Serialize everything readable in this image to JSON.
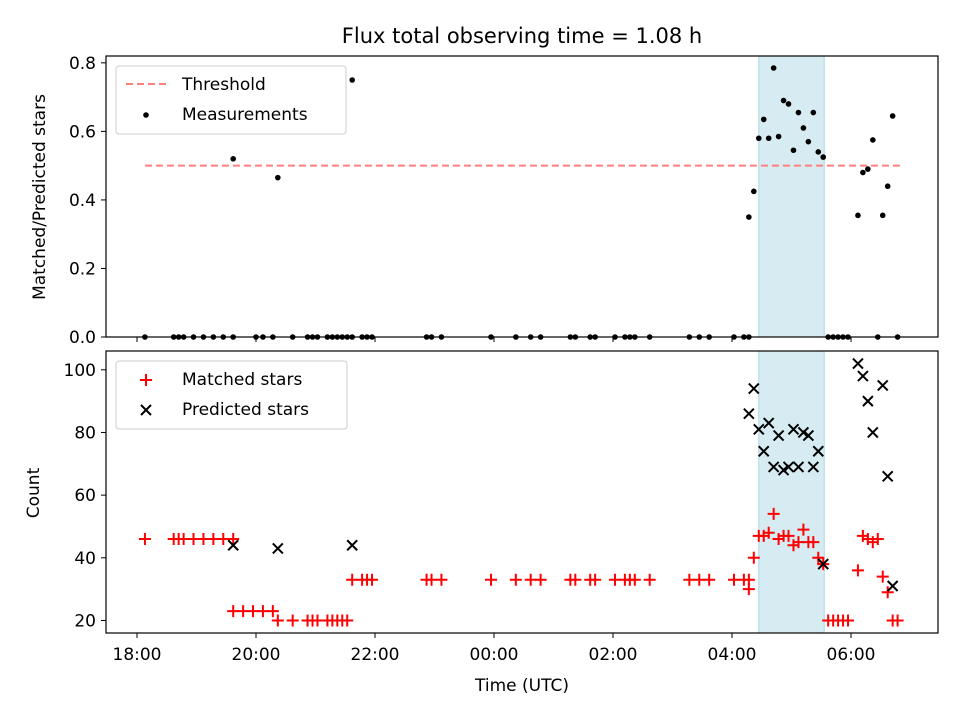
{
  "chart_data": {
    "title": "Flux total observing time = 1.08 h",
    "xlabel": "Time (UTC)",
    "x_tick_labels": [
      "18:00",
      "20:00",
      "22:00",
      "00:00",
      "02:00",
      "04:00",
      "06:00"
    ],
    "highlight_span": [
      "04:27",
      "05:33"
    ],
    "panels": [
      {
        "type": "scatter",
        "ylabel": "Matched/Predicted stars",
        "ylim": [
          0,
          0.82
        ],
        "y_ticks": [
          "0.0",
          "0.2",
          "0.4",
          "0.6",
          "0.8"
        ],
        "legend_position": "upper-left",
        "threshold": {
          "name": "Threshold",
          "value": 0.5,
          "x_range": [
            "18:08",
            "06:50"
          ],
          "color": "#ff7f7f"
        },
        "series": [
          {
            "name": "Measurements",
            "marker": "dot",
            "color": "#000000",
            "points": [
              [
                "18:08",
                0
              ],
              [
                "18:37",
                0
              ],
              [
                "18:42",
                0
              ],
              [
                "18:47",
                0
              ],
              [
                "18:57",
                0
              ],
              [
                "19:07",
                0
              ],
              [
                "19:17",
                0
              ],
              [
                "19:27",
                0
              ],
              [
                "19:37",
                0
              ],
              [
                "19:37",
                0.52
              ],
              [
                "20:00",
                0
              ],
              [
                "20:07",
                0
              ],
              [
                "20:17",
                0
              ],
              [
                "20:22",
                0.465
              ],
              [
                "20:37",
                0
              ],
              [
                "20:52",
                0
              ],
              [
                "20:57",
                0
              ],
              [
                "21:02",
                0
              ],
              [
                "21:12",
                0
              ],
              [
                "21:17",
                0
              ],
              [
                "21:22",
                0
              ],
              [
                "21:27",
                0
              ],
              [
                "21:32",
                0
              ],
              [
                "21:37",
                0
              ],
              [
                "21:37",
                0.75
              ],
              [
                "21:47",
                0
              ],
              [
                "21:52",
                0
              ],
              [
                "21:57",
                0
              ],
              [
                "22:52",
                0
              ],
              [
                "22:57",
                0
              ],
              [
                "23:07",
                0
              ],
              [
                "23:57",
                0
              ],
              [
                "00:22",
                0
              ],
              [
                "00:37",
                0
              ],
              [
                "00:47",
                0
              ],
              [
                "01:17",
                0
              ],
              [
                "01:22",
                0
              ],
              [
                "01:37",
                0
              ],
              [
                "01:42",
                0
              ],
              [
                "02:02",
                0
              ],
              [
                "02:12",
                0
              ],
              [
                "02:17",
                0
              ],
              [
                "02:22",
                0
              ],
              [
                "02:37",
                0
              ],
              [
                "03:17",
                0
              ],
              [
                "03:27",
                0
              ],
              [
                "03:37",
                0
              ],
              [
                "04:02",
                0
              ],
              [
                "04:12",
                0
              ],
              [
                "04:17",
                0
              ],
              [
                "04:17",
                0.35
              ],
              [
                "04:22",
                0.425
              ],
              [
                "04:27",
                0.58
              ],
              [
                "04:32",
                0.635
              ],
              [
                "04:37",
                0.58
              ],
              [
                "04:42",
                0.785
              ],
              [
                "04:47",
                0.585
              ],
              [
                "04:52",
                0.69
              ],
              [
                "04:57",
                0.68
              ],
              [
                "05:02",
                0.545
              ],
              [
                "05:07",
                0.655
              ],
              [
                "05:12",
                0.61
              ],
              [
                "05:17",
                0.57
              ],
              [
                "05:22",
                0.655
              ],
              [
                "05:27",
                0.54
              ],
              [
                "05:32",
                0.525
              ],
              [
                "05:37",
                0
              ],
              [
                "05:42",
                0
              ],
              [
                "05:47",
                0
              ],
              [
                "05:52",
                0
              ],
              [
                "05:57",
                0
              ],
              [
                "06:07",
                0.355
              ],
              [
                "06:12",
                0.48
              ],
              [
                "06:17",
                0.49
              ],
              [
                "06:22",
                0.575
              ],
              [
                "06:27",
                0
              ],
              [
                "06:32",
                0.355
              ],
              [
                "06:37",
                0.44
              ],
              [
                "06:42",
                0.645
              ],
              [
                "06:47",
                0
              ]
            ]
          }
        ]
      },
      {
        "type": "scatter",
        "ylabel": "Count",
        "ylim": [
          16,
          106
        ],
        "y_ticks": [
          "20",
          "40",
          "60",
          "80",
          "100"
        ],
        "legend_position": "upper-left",
        "series": [
          {
            "name": "Matched stars",
            "marker": "plus",
            "color": "#ff0000",
            "points": [
              [
                "18:08",
                46
              ],
              [
                "18:37",
                46
              ],
              [
                "18:42",
                46
              ],
              [
                "18:47",
                46
              ],
              [
                "18:57",
                46
              ],
              [
                "19:07",
                46
              ],
              [
                "19:17",
                46
              ],
              [
                "19:27",
                46
              ],
              [
                "19:37",
                46
              ],
              [
                "19:37",
                23
              ],
              [
                "19:47",
                23
              ],
              [
                "19:57",
                23
              ],
              [
                "20:07",
                23
              ],
              [
                "20:17",
                23
              ],
              [
                "20:22",
                20
              ],
              [
                "20:37",
                20
              ],
              [
                "20:52",
                20
              ],
              [
                "20:57",
                20
              ],
              [
                "21:02",
                20
              ],
              [
                "21:12",
                20
              ],
              [
                "21:17",
                20
              ],
              [
                "21:22",
                20
              ],
              [
                "21:27",
                20
              ],
              [
                "21:32",
                20
              ],
              [
                "21:37",
                33
              ],
              [
                "21:47",
                33
              ],
              [
                "21:52",
                33
              ],
              [
                "21:57",
                33
              ],
              [
                "22:52",
                33
              ],
              [
                "22:57",
                33
              ],
              [
                "23:07",
                33
              ],
              [
                "23:57",
                33
              ],
              [
                "00:22",
                33
              ],
              [
                "00:37",
                33
              ],
              [
                "00:47",
                33
              ],
              [
                "01:17",
                33
              ],
              [
                "01:22",
                33
              ],
              [
                "01:37",
                33
              ],
              [
                "01:42",
                33
              ],
              [
                "02:02",
                33
              ],
              [
                "02:12",
                33
              ],
              [
                "02:17",
                33
              ],
              [
                "02:22",
                33
              ],
              [
                "02:37",
                33
              ],
              [
                "03:17",
                33
              ],
              [
                "03:27",
                33
              ],
              [
                "03:37",
                33
              ],
              [
                "04:02",
                33
              ],
              [
                "04:12",
                33
              ],
              [
                "04:17",
                33
              ],
              [
                "04:17",
                30
              ],
              [
                "04:22",
                40
              ],
              [
                "04:27",
                47
              ],
              [
                "04:32",
                47
              ],
              [
                "04:37",
                48
              ],
              [
                "04:42",
                54
              ],
              [
                "04:47",
                46
              ],
              [
                "04:52",
                47
              ],
              [
                "04:57",
                47
              ],
              [
                "05:02",
                44
              ],
              [
                "05:07",
                45
              ],
              [
                "05:12",
                49
              ],
              [
                "05:17",
                45
              ],
              [
                "05:22",
                45
              ],
              [
                "05:27",
                40
              ],
              [
                "05:32",
                38
              ],
              [
                "05:37",
                20
              ],
              [
                "05:42",
                20
              ],
              [
                "05:47",
                20
              ],
              [
                "05:52",
                20
              ],
              [
                "05:57",
                20
              ],
              [
                "06:07",
                36
              ],
              [
                "06:12",
                47
              ],
              [
                "06:17",
                46
              ],
              [
                "06:22",
                45
              ],
              [
                "06:27",
                46
              ],
              [
                "06:32",
                34
              ],
              [
                "06:37",
                29
              ],
              [
                "06:42",
                20
              ],
              [
                "06:47",
                20
              ]
            ]
          },
          {
            "name": "Predicted stars",
            "marker": "x",
            "color": "#000000",
            "points": [
              [
                "19:37",
                44
              ],
              [
                "20:22",
                43
              ],
              [
                "21:37",
                44
              ],
              [
                "04:17",
                86
              ],
              [
                "04:22",
                94
              ],
              [
                "04:27",
                81
              ],
              [
                "04:32",
                74
              ],
              [
                "04:37",
                83
              ],
              [
                "04:42",
                69
              ],
              [
                "04:47",
                79
              ],
              [
                "04:52",
                68
              ],
              [
                "04:57",
                69
              ],
              [
                "05:02",
                81
              ],
              [
                "05:07",
                69
              ],
              [
                "05:12",
                80
              ],
              [
                "05:17",
                79
              ],
              [
                "05:22",
                69
              ],
              [
                "05:27",
                74
              ],
              [
                "05:32",
                38
              ],
              [
                "06:07",
                102
              ],
              [
                "06:12",
                98
              ],
              [
                "06:17",
                90
              ],
              [
                "06:22",
                80
              ],
              [
                "06:32",
                95
              ],
              [
                "06:37",
                66
              ],
              [
                "06:42",
                31
              ]
            ]
          }
        ]
      }
    ]
  }
}
